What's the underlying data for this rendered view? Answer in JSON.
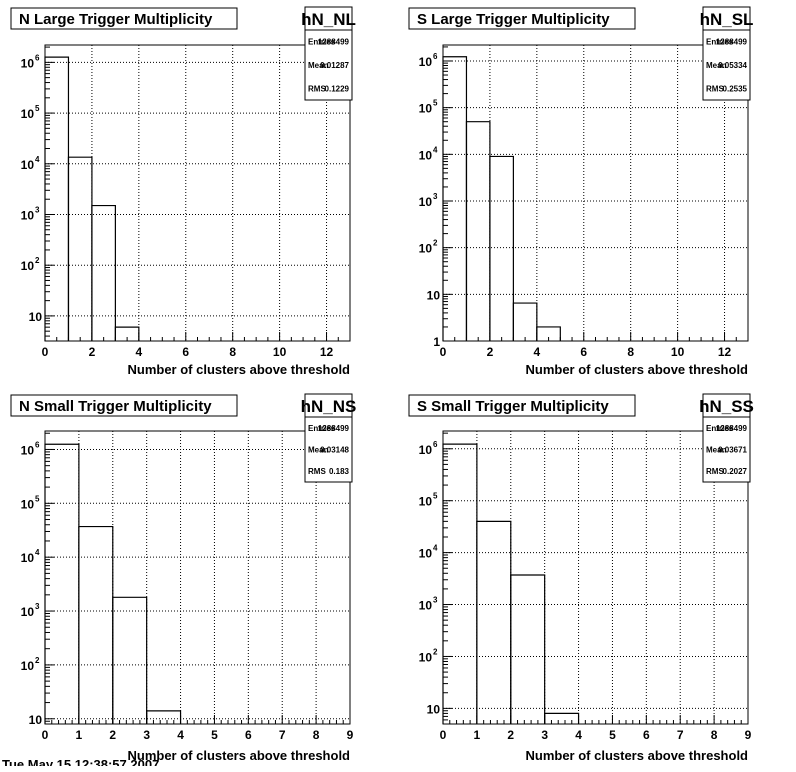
{
  "footer": {
    "timestamp": "Tue May 15 12:38:57 2007"
  },
  "chart_data": [
    {
      "type": "bar",
      "title": "N Large Trigger Multiplicity",
      "stats_name": "hN_NL",
      "stats": [
        {
          "label": "Entries",
          "value": "1288499"
        },
        {
          "label": "Mean",
          "value": "0.01287"
        },
        {
          "label": "RMS",
          "value": "0.1229"
        }
      ],
      "xlabel": "Number of clusters above threshold",
      "ylabel": "",
      "xlim": [
        0,
        13
      ],
      "xticks": [
        0,
        2,
        4,
        6,
        8,
        10,
        12
      ],
      "ylim": [
        3.2,
        2200000
      ],
      "ylog": true,
      "yticks": [
        {
          "value": 10,
          "label": "10"
        },
        {
          "value": 100,
          "label": "10",
          "exp": "2"
        },
        {
          "value": 1000,
          "label": "10",
          "exp": "3"
        },
        {
          "value": 10000,
          "label": "10",
          "exp": "4"
        },
        {
          "value": 100000,
          "label": "10",
          "exp": "5"
        },
        {
          "value": 1000000,
          "label": "10",
          "exp": "6"
        }
      ],
      "grid": true,
      "bins": [
        {
          "x0": 0,
          "x1": 1,
          "y": 1270000
        },
        {
          "x0": 1,
          "x1": 2,
          "y": 13500
        },
        {
          "x0": 2,
          "x1": 3,
          "y": 1500
        },
        {
          "x0": 3,
          "x1": 4,
          "y": 6
        }
      ]
    },
    {
      "type": "bar",
      "title": "S Large Trigger Multiplicity",
      "stats_name": "hN_SL",
      "stats": [
        {
          "label": "Entries",
          "value": "1288499"
        },
        {
          "label": "Mean",
          "value": "0.05334"
        },
        {
          "label": "RMS",
          "value": "0.2535"
        }
      ],
      "xlabel": "Number of clusters above threshold",
      "ylabel": "",
      "xlim": [
        0,
        13
      ],
      "xticks": [
        0,
        2,
        4,
        6,
        8,
        10,
        12
      ],
      "ylim": [
        1,
        2200000
      ],
      "ylog": true,
      "yticks": [
        {
          "value": 1,
          "label": "1"
        },
        {
          "value": 10,
          "label": "10"
        },
        {
          "value": 100,
          "label": "10",
          "exp": "2"
        },
        {
          "value": 1000,
          "label": "10",
          "exp": "3"
        },
        {
          "value": 10000,
          "label": "10",
          "exp": "4"
        },
        {
          "value": 100000,
          "label": "10",
          "exp": "5"
        },
        {
          "value": 1000000,
          "label": "10",
          "exp": "6"
        }
      ],
      "grid": true,
      "bins": [
        {
          "x0": 0,
          "x1": 1,
          "y": 1230000
        },
        {
          "x0": 1,
          "x1": 2,
          "y": 50000
        },
        {
          "x0": 2,
          "x1": 3,
          "y": 9000
        },
        {
          "x0": 3,
          "x1": 4,
          "y": 6.5
        },
        {
          "x0": 4,
          "x1": 5,
          "y": 2
        }
      ]
    },
    {
      "type": "bar",
      "title": "N Small Trigger Multiplicity",
      "stats_name": "hN_NS",
      "stats": [
        {
          "label": "Entries",
          "value": "1288499"
        },
        {
          "label": "Mean",
          "value": "0.03148"
        },
        {
          "label": "RMS",
          "value": "0.183"
        }
      ],
      "xlabel": "Number of clusters above threshold",
      "ylabel": "",
      "xlim": [
        0,
        9
      ],
      "xticks": [
        0,
        1,
        2,
        3,
        4,
        5,
        6,
        7,
        8,
        9
      ],
      "ylim": [
        8,
        2200000
      ],
      "ylog": true,
      "yticks": [
        {
          "value": 10,
          "label": "10"
        },
        {
          "value": 100,
          "label": "10",
          "exp": "2"
        },
        {
          "value": 1000,
          "label": "10",
          "exp": "3"
        },
        {
          "value": 10000,
          "label": "10",
          "exp": "4"
        },
        {
          "value": 100000,
          "label": "10",
          "exp": "5"
        },
        {
          "value": 1000000,
          "label": "10",
          "exp": "6"
        }
      ],
      "grid": true,
      "bins": [
        {
          "x0": 0,
          "x1": 1,
          "y": 1250000
        },
        {
          "x0": 1,
          "x1": 2,
          "y": 37000
        },
        {
          "x0": 2,
          "x1": 3,
          "y": 1800
        },
        {
          "x0": 3,
          "x1": 4,
          "y": 14
        }
      ]
    },
    {
      "type": "bar",
      "title": "S Small Trigger Multiplicity",
      "stats_name": "hN_SS",
      "stats": [
        {
          "label": "Entries",
          "value": "1288499"
        },
        {
          "label": "Mean",
          "value": "0.03671"
        },
        {
          "label": "RMS",
          "value": "0.2027"
        }
      ],
      "xlabel": "Number of clusters above threshold",
      "ylabel": "",
      "xlim": [
        0,
        9
      ],
      "xticks": [
        0,
        1,
        2,
        3,
        4,
        5,
        6,
        7,
        8,
        9
      ],
      "ylim": [
        5,
        2200000
      ],
      "ylog": true,
      "yticks": [
        {
          "value": 10,
          "label": "10"
        },
        {
          "value": 100,
          "label": "10",
          "exp": "2"
        },
        {
          "value": 1000,
          "label": "10",
          "exp": "3"
        },
        {
          "value": 10000,
          "label": "10",
          "exp": "4"
        },
        {
          "value": 100000,
          "label": "10",
          "exp": "5"
        },
        {
          "value": 1000000,
          "label": "10",
          "exp": "6"
        }
      ],
      "grid": true,
      "bins": [
        {
          "x0": 0,
          "x1": 1,
          "y": 1230000
        },
        {
          "x0": 1,
          "x1": 2,
          "y": 40000
        },
        {
          "x0": 2,
          "x1": 3,
          "y": 3700
        },
        {
          "x0": 3,
          "x1": 4,
          "y": 8
        }
      ]
    }
  ]
}
